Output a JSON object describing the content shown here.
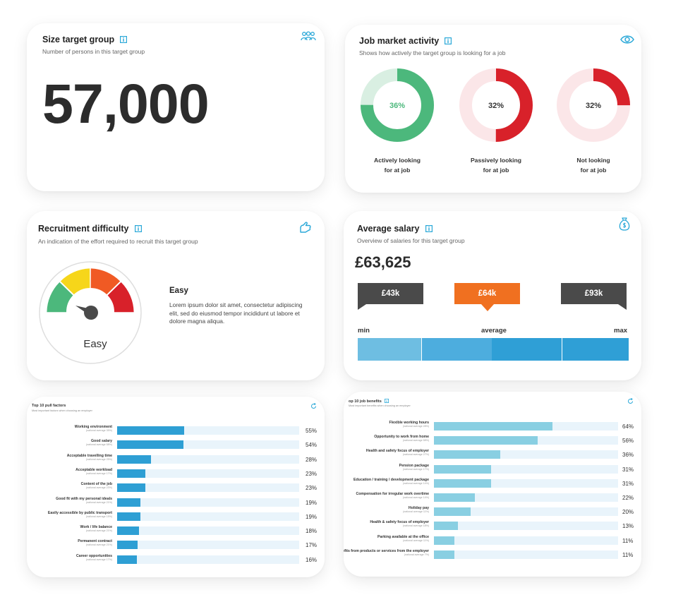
{
  "colors": {
    "accent": "#2aa8d8",
    "green": "#4cb87c",
    "green_light": "#d9efe2",
    "red": "#d8212a",
    "red_light": "#fbe6e8",
    "orange": "#f07020",
    "dark": "#4a4a4a",
    "bar_blue": "#2e9fd4",
    "bar_light": "#89cfe2",
    "track": "#e9f4fb"
  },
  "size_card": {
    "title": "Size target group",
    "subtitle": "Number of persons in this target group",
    "value": "57,000",
    "corner_icon": "people-icon"
  },
  "market_card": {
    "title": "Job market activity",
    "subtitle": "Shows how actively the target group is looking for a job",
    "corner_icon": "eye-icon",
    "donuts": [
      {
        "percent": 36,
        "label": "36%",
        "caption": "Actively looking\nfor at job",
        "color": "green"
      },
      {
        "percent": 32,
        "label": "32%",
        "caption": "Passively looking\nfor at job",
        "color": "red"
      },
      {
        "percent": 32,
        "label": "32%",
        "caption": "Not looking\nfor at job",
        "color": "red"
      }
    ]
  },
  "difficulty_card": {
    "title": "Recruitment difficulty",
    "subtitle": "An indication of the effort required to recruit this target group",
    "corner_icon": "hand-icon",
    "gauge_label": "Easy",
    "heading": "Easy",
    "description": "Lorem ipsum dolor sit amet, consectetur adipiscing elit, sed do eiusmod tempor incididunt ut labore et dolore magna aliqua."
  },
  "salary_card": {
    "title": "Average salary",
    "subtitle": "Overview of salaries for this target group",
    "corner_icon": "money-bag-icon",
    "value": "£63,625",
    "min": "£43k",
    "avg": "£64k",
    "max": "£93k",
    "min_label": "min",
    "avg_label": "average",
    "max_label": "max"
  },
  "pull_card": {
    "title": "Top 10 pull factors",
    "subtitle": "Most important factors when choosing an employer",
    "rows": [
      {
        "label": "Working environment",
        "note": "(national average 35%)",
        "value": 55,
        "pct": "55%"
      },
      {
        "label": "Good salary",
        "note": "(national average 58%)",
        "value": 54,
        "pct": "54%"
      },
      {
        "label": "Acceptable travelling time",
        "note": "(national average 25%)",
        "value": 28,
        "pct": "28%"
      },
      {
        "label": "Acceptable workload",
        "note": "(national average 17%)",
        "value": 23,
        "pct": "23%"
      },
      {
        "label": "Content of the job",
        "note": "(national average 23%)",
        "value": 23,
        "pct": "23%"
      },
      {
        "label": "Good fit with my personal ideals",
        "note": "(national average 21%)",
        "value": 19,
        "pct": "19%"
      },
      {
        "label": "Easily accessible by public transport",
        "note": "(national average 15%)",
        "value": 19,
        "pct": "19%"
      },
      {
        "label": "Work / life balance",
        "note": "(national average 21%)",
        "value": 18,
        "pct": "18%"
      },
      {
        "label": "Permanent contract",
        "note": "(national average 21%)",
        "value": 17,
        "pct": "17%"
      },
      {
        "label": "Career opportunities",
        "note": "(national average 17%)",
        "value": 16,
        "pct": "16%"
      }
    ]
  },
  "benefits_card": {
    "title": "op 10 job benefits",
    "subtitle": "Most important benefits when choosing an employer",
    "rows": [
      {
        "label": "Flexible working hours",
        "note": "(national average 28%)",
        "value": 64,
        "pct": "64%"
      },
      {
        "label": "Opportunity to work from home",
        "note": "(national average 58%)",
        "value": 56,
        "pct": "56%"
      },
      {
        "label": "Health and safety focus of employer",
        "note": "(national average 27%)",
        "value": 36,
        "pct": "36%"
      },
      {
        "label": "Pension package",
        "note": "(national average 17%)",
        "value": 31,
        "pct": "31%"
      },
      {
        "label": "Education / training / development package",
        "note": "(national average 14%)",
        "value": 31,
        "pct": "31%"
      },
      {
        "label": "Compensation for irregular work overtime",
        "note": "(national average 14%)",
        "value": 22,
        "pct": "22%"
      },
      {
        "label": "Holiday pay",
        "note": "(national average 11%)",
        "value": 20,
        "pct": "20%"
      },
      {
        "label": "Health & safety focus of employer",
        "note": "(national average 18%)",
        "value": 13,
        "pct": "13%"
      },
      {
        "label": "Parking available at the office",
        "note": "(national average 11%)",
        "value": 11,
        "pct": "11%"
      },
      {
        "label": "Benefits from products or services from the employer",
        "note": "(national average 7%)",
        "value": 11,
        "pct": "11%"
      }
    ]
  }
}
